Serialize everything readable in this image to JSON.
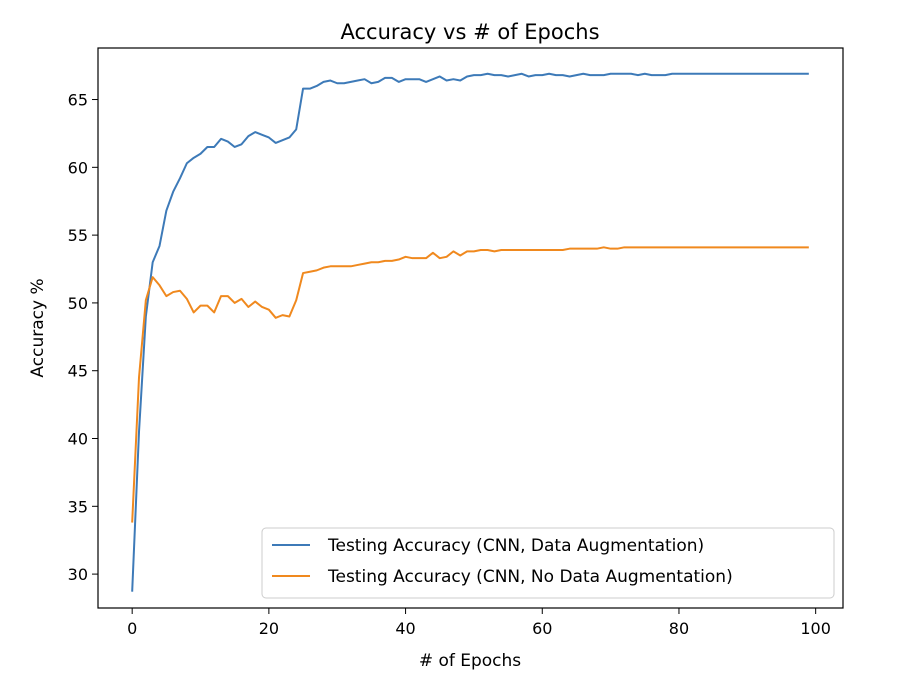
{
  "chart_data": {
    "type": "line",
    "title": "Accuracy vs # of Epochs",
    "xlabel": "# of Epochs",
    "ylabel": "Accuracy %",
    "xlim": [
      -5,
      104
    ],
    "ylim": [
      27.5,
      68.8
    ],
    "xticks": [
      0,
      20,
      40,
      60,
      80,
      100
    ],
    "yticks": [
      30,
      35,
      40,
      45,
      50,
      55,
      60,
      65
    ],
    "grid": false,
    "legend": "lower-right",
    "x": [
      0,
      1,
      2,
      3,
      4,
      5,
      6,
      7,
      8,
      9,
      10,
      11,
      12,
      13,
      14,
      15,
      16,
      17,
      18,
      19,
      20,
      21,
      22,
      23,
      24,
      25,
      26,
      27,
      28,
      29,
      30,
      31,
      32,
      33,
      34,
      35,
      36,
      37,
      38,
      39,
      40,
      41,
      42,
      43,
      44,
      45,
      46,
      47,
      48,
      49,
      50,
      51,
      52,
      53,
      54,
      55,
      56,
      57,
      58,
      59,
      60,
      61,
      62,
      63,
      64,
      65,
      66,
      67,
      68,
      69,
      70,
      71,
      72,
      73,
      74,
      75,
      76,
      77,
      78,
      79,
      80,
      81,
      82,
      83,
      84,
      85,
      86,
      87,
      88,
      89,
      90,
      91,
      92,
      93,
      94,
      95,
      96,
      97,
      98,
      99
    ],
    "series": [
      {
        "name": "Testing Accuracy (CNN, Data Augmentation)",
        "color": "#3d7ab8",
        "values": [
          28.7,
          40.5,
          49.0,
          53.0,
          54.2,
          56.8,
          58.2,
          59.2,
          60.3,
          60.7,
          61.0,
          61.5,
          61.5,
          62.1,
          61.9,
          61.5,
          61.7,
          62.3,
          62.6,
          62.4,
          62.2,
          61.8,
          62.0,
          62.2,
          62.8,
          65.8,
          65.8,
          66.0,
          66.3,
          66.4,
          66.2,
          66.2,
          66.3,
          66.4,
          66.5,
          66.2,
          66.3,
          66.6,
          66.6,
          66.3,
          66.5,
          66.5,
          66.5,
          66.3,
          66.5,
          66.7,
          66.4,
          66.5,
          66.4,
          66.7,
          66.8,
          66.8,
          66.9,
          66.8,
          66.8,
          66.7,
          66.8,
          66.9,
          66.7,
          66.8,
          66.8,
          66.9,
          66.8,
          66.8,
          66.7,
          66.8,
          66.9,
          66.8,
          66.8,
          66.8,
          66.9,
          66.9,
          66.9,
          66.9,
          66.8,
          66.9,
          66.8,
          66.8,
          66.8,
          66.9,
          66.9,
          66.9,
          66.9,
          66.9,
          66.9,
          66.9,
          66.9,
          66.9,
          66.9,
          66.9,
          66.9,
          66.9,
          66.9,
          66.9,
          66.9,
          66.9,
          66.9,
          66.9,
          66.9,
          66.9
        ]
      },
      {
        "name": "Testing Accuracy (CNN, No Data Augmentation)",
        "color": "#f0891e",
        "values": [
          33.8,
          44.5,
          50.2,
          51.9,
          51.3,
          50.5,
          50.8,
          50.9,
          50.3,
          49.3,
          49.8,
          49.8,
          49.3,
          50.5,
          50.5,
          50.0,
          50.3,
          49.7,
          50.1,
          49.7,
          49.5,
          48.9,
          49.1,
          49.0,
          50.2,
          52.2,
          52.3,
          52.4,
          52.6,
          52.7,
          52.7,
          52.7,
          52.7,
          52.8,
          52.9,
          53.0,
          53.0,
          53.1,
          53.1,
          53.2,
          53.4,
          53.3,
          53.3,
          53.3,
          53.7,
          53.3,
          53.4,
          53.8,
          53.5,
          53.8,
          53.8,
          53.9,
          53.9,
          53.8,
          53.9,
          53.9,
          53.9,
          53.9,
          53.9,
          53.9,
          53.9,
          53.9,
          53.9,
          53.9,
          54.0,
          54.0,
          54.0,
          54.0,
          54.0,
          54.1,
          54.0,
          54.0,
          54.1,
          54.1,
          54.1,
          54.1,
          54.1,
          54.1,
          54.1,
          54.1,
          54.1,
          54.1,
          54.1,
          54.1,
          54.1,
          54.1,
          54.1,
          54.1,
          54.1,
          54.1,
          54.1,
          54.1,
          54.1,
          54.1,
          54.1,
          54.1,
          54.1,
          54.1,
          54.1,
          54.1
        ]
      }
    ]
  }
}
